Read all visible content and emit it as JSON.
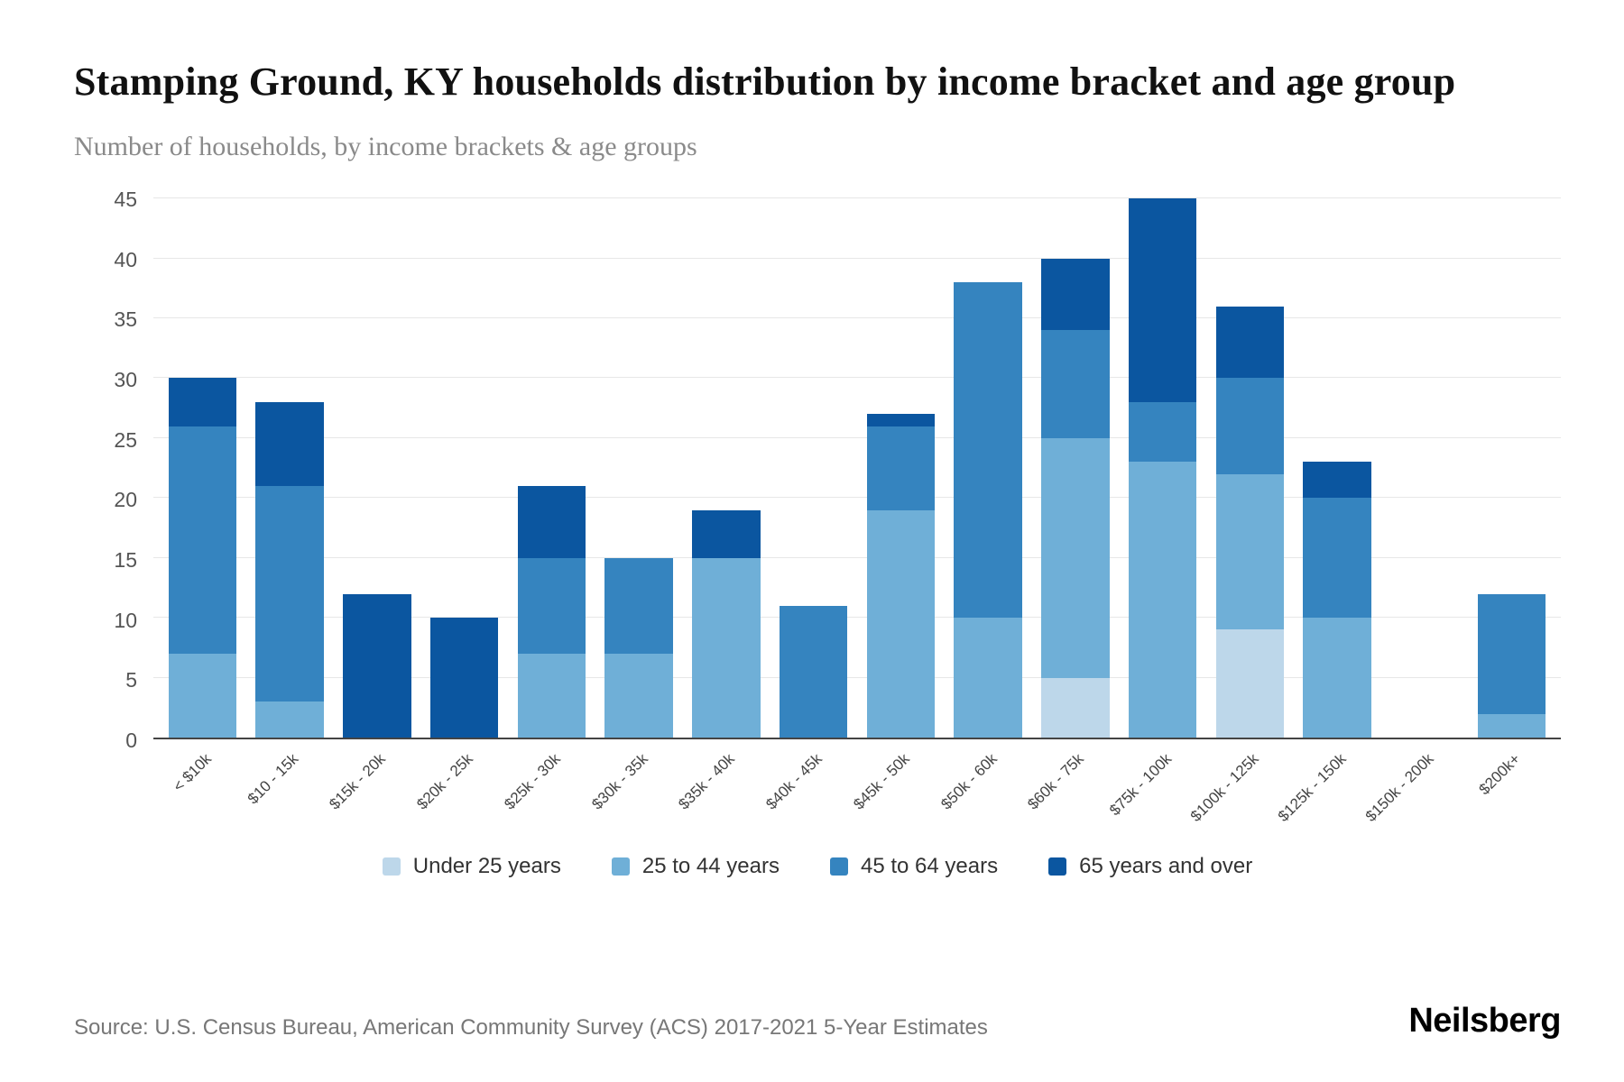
{
  "header": {
    "title": "Stamping Ground, KY households distribution by income bracket and age group",
    "subtitle": "Number of households, by income brackets & age groups"
  },
  "chart_data": {
    "type": "bar",
    "stacked": true,
    "title": "Stamping Ground, KY households distribution by income bracket and age group",
    "subtitle": "Number of households, by income brackets & age groups",
    "xlabel": "",
    "ylabel": "",
    "ylim": [
      0,
      45
    ],
    "yticks": [
      0,
      5,
      10,
      15,
      20,
      25,
      30,
      35,
      40,
      45
    ],
    "grid": true,
    "legend_position": "bottom",
    "categories": [
      "< $10k",
      "$10 - 15k",
      "$15k - 20k",
      "$20k - 25k",
      "$25k - 30k",
      "$30k - 35k",
      "$35k - 40k",
      "$40k - 45k",
      "$45k - 50k",
      "$50k - 60k",
      "$60k - 75k",
      "$75k - 100k",
      "$100k - 125k",
      "$125k - 150k",
      "$150k - 200k",
      "$200k+"
    ],
    "series": [
      {
        "name": "Under 25 years",
        "color": "#bdd7ea",
        "values": [
          0,
          0,
          0,
          0,
          0,
          0,
          0,
          0,
          0,
          0,
          5,
          0,
          9,
          0,
          0,
          0
        ]
      },
      {
        "name": "25 to 44 years",
        "color": "#6fafd7",
        "values": [
          7,
          3,
          0,
          0,
          7,
          7,
          15,
          0,
          19,
          10,
          20,
          23,
          13,
          10,
          0,
          2
        ]
      },
      {
        "name": "45 to 64 years",
        "color": "#3584bf",
        "values": [
          19,
          18,
          0,
          0,
          8,
          8,
          0,
          11,
          7,
          28,
          9,
          5,
          8,
          10,
          0,
          10
        ]
      },
      {
        "name": "65 years and over",
        "color": "#0b56a0",
        "values": [
          4,
          7,
          12,
          10,
          6,
          0,
          4,
          0,
          1,
          0,
          6,
          17,
          6,
          3,
          0,
          0
        ]
      }
    ]
  },
  "footer": {
    "source": "Source: U.S. Census Bureau, American Community Survey (ACS) 2017-2021 5-Year Estimates",
    "brand": "Neilsberg"
  }
}
